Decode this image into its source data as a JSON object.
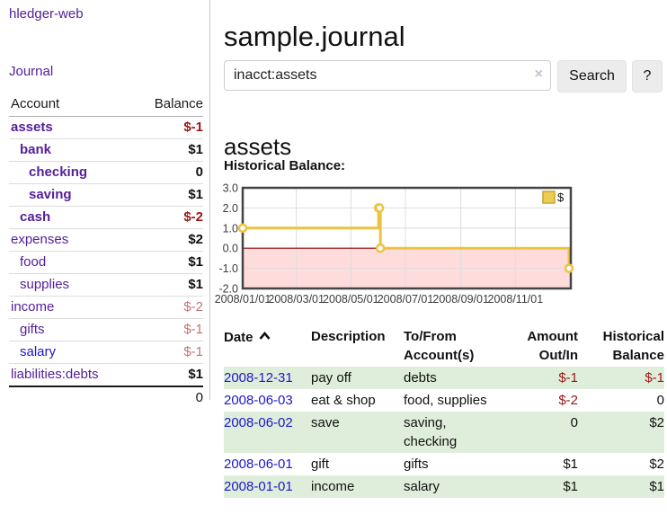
{
  "sidebar": {
    "brand": "hledger-web",
    "nav_journal": "Journal",
    "accounts_table": {
      "account_header": "Account",
      "balance_header": "Balance",
      "rows": [
        {
          "name": "assets",
          "depth": 1,
          "bold": true,
          "balance": "$-1",
          "balance_style": "negS"
        },
        {
          "name": "bank",
          "depth": 2,
          "bold": true,
          "balance": "$1",
          "balance_style": "pos"
        },
        {
          "name": "checking",
          "depth": 3,
          "bold": true,
          "balance": "0",
          "balance_style": "pos"
        },
        {
          "name": "saving",
          "depth": 3,
          "bold": true,
          "balance": "$1",
          "balance_style": "pos"
        },
        {
          "name": "cash",
          "depth": 2,
          "bold": true,
          "balance": "$-2",
          "balance_style": "negS"
        },
        {
          "name": "expenses",
          "depth": 1,
          "bold": false,
          "balance": "$2",
          "balance_style": "pos"
        },
        {
          "name": "food",
          "depth": 2,
          "bold": false,
          "balance": "$1",
          "balance_style": "pos"
        },
        {
          "name": "supplies",
          "depth": 2,
          "bold": false,
          "balance": "$1",
          "balance_style": "pos"
        },
        {
          "name": "income",
          "depth": 1,
          "bold": false,
          "balance": "$-2",
          "balance_style": "negL"
        },
        {
          "name": "gifts",
          "depth": 2,
          "bold": false,
          "balance": "$-1",
          "balance_style": "negL"
        },
        {
          "name": "salary",
          "depth": 2,
          "bold": false,
          "balance": "$-1",
          "balance_style": "negL",
          "link_style": "blue"
        },
        {
          "name": "liabilities:debts",
          "depth": 1,
          "bold": false,
          "balance": "$1",
          "balance_style": "pos"
        }
      ],
      "total": "0"
    }
  },
  "main": {
    "title": "sample.journal",
    "search": {
      "value": "inacct:assets",
      "clear_icon": "×",
      "search_button": "Search",
      "help_button": "?"
    },
    "account_heading": "assets",
    "chart_title": "Historical Balance:"
  },
  "chart_data": {
    "type": "line",
    "style": "steps",
    "title": "Historical Balance:",
    "series": [
      {
        "name": "$",
        "color": "#edc240",
        "points": [
          [
            "2008-01-01",
            1
          ],
          [
            "2008-06-01",
            2
          ],
          [
            "2008-06-02",
            2
          ],
          [
            "2008-06-03",
            0
          ],
          [
            "2008-12-31",
            -1
          ]
        ]
      }
    ],
    "x_ticks": [
      "2008/01/01",
      "2008/03/01",
      "2008/05/01",
      "2008/07/01",
      "2008/09/01",
      "2008/11/01"
    ],
    "y_ticks": [
      3.0,
      2.0,
      1.0,
      0.0,
      -1.0,
      -2.0
    ],
    "xlim": [
      "2008-01-01",
      "2009-01-02"
    ],
    "ylim": [
      -2,
      3
    ],
    "grid": true,
    "legend_position": "top-right",
    "negative_region_color": "#ffdcdc",
    "zero_line_color": "#8e0000",
    "border_color": "#444444",
    "grid_color": "#dddddd"
  },
  "register": {
    "headers": {
      "date": "Date",
      "description": "Description",
      "tofrom": "To/From Account(s)",
      "amount": "Amount Out/In",
      "balance": "Historical Balance"
    },
    "sort": {
      "column": "date",
      "direction": "ascending",
      "icon": "chevron-up"
    },
    "rows": [
      {
        "date": "2008-12-31",
        "description": "pay off",
        "accounts": "debts",
        "amount": "$-1",
        "amount_neg": true,
        "balance": "$-1",
        "balance_neg": true,
        "stripe": true
      },
      {
        "date": "2008-06-03",
        "description": "eat & shop",
        "accounts": "food, supplies",
        "amount": "$-2",
        "amount_neg": true,
        "balance": "0",
        "balance_neg": false,
        "stripe": false
      },
      {
        "date": "2008-06-02",
        "description": "save",
        "accounts": "saving, checking",
        "amount": "0",
        "amount_neg": false,
        "balance": "$2",
        "balance_neg": false,
        "stripe": true
      },
      {
        "date": "2008-06-01",
        "description": "gift",
        "accounts": "gifts",
        "amount": "$1",
        "amount_neg": false,
        "balance": "$2",
        "balance_neg": false,
        "stripe": false
      },
      {
        "date": "2008-01-01",
        "description": "income",
        "accounts": "salary",
        "amount": "$1",
        "amount_neg": false,
        "balance": "$1",
        "balance_neg": false,
        "stripe": true
      }
    ]
  },
  "colors": {
    "accent_purple": "#55209b",
    "link_blue": "#1d17cf",
    "negative_strong": "#9e1414",
    "negative_soft": "#c07474",
    "stripe_green": "#dfeeda",
    "chart_gold": "#edc240",
    "negative_region_pink": "#ffdcdc",
    "zero_line_maroon": "#8e0000"
  }
}
